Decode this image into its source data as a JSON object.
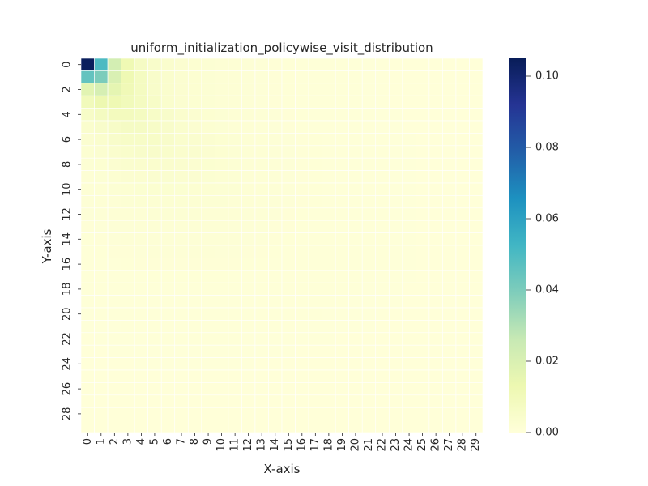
{
  "chart_data": {
    "type": "heatmap",
    "title": "uniform_initialization_policywise_visit_distribution",
    "xlabel": "X-axis",
    "ylabel": "Y-axis",
    "n_cols": 30,
    "n_rows": 30,
    "x_tick_labels": [
      "0",
      "1",
      "2",
      "3",
      "4",
      "5",
      "6",
      "7",
      "8",
      "9",
      "10",
      "11",
      "12",
      "13",
      "14",
      "15",
      "16",
      "17",
      "18",
      "19",
      "20",
      "21",
      "22",
      "23",
      "24",
      "25",
      "26",
      "27",
      "28",
      "29"
    ],
    "y_tick_labels": [
      "0",
      "2",
      "4",
      "6",
      "8",
      "10",
      "12",
      "14",
      "16",
      "18",
      "20",
      "22",
      "24",
      "26",
      "28"
    ],
    "colorbar": {
      "min": 0.0,
      "max": 0.105,
      "ticks": [
        0.0,
        0.02,
        0.04,
        0.06,
        0.08,
        0.1
      ],
      "tick_labels": [
        "0.00",
        "0.02",
        "0.04",
        "0.06",
        "0.08",
        "0.10"
      ],
      "colormap": "YlGnBu",
      "colors": [
        "#ffffd9",
        "#edf8b1",
        "#c7e9b4",
        "#7fcdbb",
        "#41b6c4",
        "#1d91c0",
        "#225ea8",
        "#253494",
        "#081d58"
      ]
    },
    "values": [
      [
        0.104,
        0.05,
        0.022,
        0.012,
        0.007,
        0.005,
        0.004,
        0.003,
        0.0025,
        0.002,
        0.0018,
        0.0015,
        0.0013,
        0.0011,
        0.001,
        0.0009,
        0.0008,
        0.0007,
        0.0006,
        0.0005,
        0.0005,
        0.0004,
        0.0004,
        0.0003,
        0.0003,
        0.0003,
        0.0002,
        0.0002,
        0.0002,
        0.0002
      ],
      [
        0.045,
        0.04,
        0.02,
        0.012,
        0.008,
        0.005,
        0.004,
        0.003,
        0.0025,
        0.002,
        0.0018,
        0.0015,
        0.0013,
        0.0011,
        0.001,
        0.0009,
        0.0008,
        0.0007,
        0.0006,
        0.0005,
        0.0005,
        0.0004,
        0.0004,
        0.0003,
        0.0003,
        0.0003,
        0.0002,
        0.0002,
        0.0002,
        0.0002
      ],
      [
        0.017,
        0.021,
        0.016,
        0.011,
        0.008,
        0.005,
        0.004,
        0.003,
        0.0025,
        0.002,
        0.0018,
        0.0015,
        0.0013,
        0.0011,
        0.001,
        0.0009,
        0.0008,
        0.0007,
        0.0006,
        0.0005,
        0.0005,
        0.0004,
        0.0004,
        0.0003,
        0.0003,
        0.0003,
        0.0002,
        0.0002,
        0.0002,
        0.0002
      ],
      [
        0.01,
        0.013,
        0.012,
        0.01,
        0.008,
        0.006,
        0.004,
        0.003,
        0.0025,
        0.002,
        0.0018,
        0.0015,
        0.0013,
        0.0011,
        0.001,
        0.0009,
        0.0008,
        0.0007,
        0.0006,
        0.0005,
        0.0005,
        0.0004,
        0.0004,
        0.0003,
        0.0003,
        0.0003,
        0.0002,
        0.0002,
        0.0002,
        0.0002
      ],
      [
        0.006,
        0.008,
        0.009,
        0.009,
        0.008,
        0.006,
        0.005,
        0.004,
        0.003,
        0.0025,
        0.002,
        0.0018,
        0.0015,
        0.0013,
        0.0011,
        0.001,
        0.0009,
        0.0008,
        0.0007,
        0.0006,
        0.0005,
        0.0005,
        0.0004,
        0.0004,
        0.0003,
        0.0003,
        0.0003,
        0.0002,
        0.0002,
        0.0002
      ],
      [
        0.004,
        0.005,
        0.006,
        0.007,
        0.007,
        0.006,
        0.005,
        0.004,
        0.003,
        0.0025,
        0.002,
        0.0018,
        0.0015,
        0.0013,
        0.0011,
        0.001,
        0.0009,
        0.0008,
        0.0007,
        0.0006,
        0.0005,
        0.0005,
        0.0004,
        0.0004,
        0.0003,
        0.0003,
        0.0003,
        0.0002,
        0.0002,
        0.0002
      ],
      [
        0.003,
        0.004,
        0.005,
        0.006,
        0.006,
        0.006,
        0.005,
        0.004,
        0.0035,
        0.003,
        0.0025,
        0.002,
        0.0018,
        0.0015,
        0.0013,
        0.0011,
        0.001,
        0.0009,
        0.0008,
        0.0007,
        0.0006,
        0.0005,
        0.0005,
        0.0004,
        0.0004,
        0.0003,
        0.0003,
        0.0003,
        0.0002,
        0.0002
      ],
      [
        0.0025,
        0.003,
        0.004,
        0.0045,
        0.005,
        0.005,
        0.0045,
        0.004,
        0.0035,
        0.003,
        0.0025,
        0.002,
        0.0018,
        0.0015,
        0.0013,
        0.0011,
        0.001,
        0.0009,
        0.0008,
        0.0007,
        0.0006,
        0.0005,
        0.0005,
        0.0004,
        0.0004,
        0.0003,
        0.0003,
        0.0003,
        0.0002,
        0.0002
      ],
      [
        0.002,
        0.0025,
        0.003,
        0.0035,
        0.004,
        0.004,
        0.004,
        0.0035,
        0.003,
        0.0028,
        0.0025,
        0.002,
        0.0018,
        0.0015,
        0.0013,
        0.0011,
        0.001,
        0.0009,
        0.0008,
        0.0007,
        0.0006,
        0.0005,
        0.0005,
        0.0004,
        0.0004,
        0.0003,
        0.0003,
        0.0003,
        0.0002,
        0.0002
      ],
      [
        0.0018,
        0.002,
        0.0025,
        0.003,
        0.0032,
        0.0034,
        0.0034,
        0.0032,
        0.003,
        0.0027,
        0.0024,
        0.002,
        0.0018,
        0.0015,
        0.0013,
        0.0011,
        0.001,
        0.0009,
        0.0008,
        0.0007,
        0.0006,
        0.0005,
        0.0005,
        0.0004,
        0.0004,
        0.0003,
        0.0003,
        0.0003,
        0.0002,
        0.0002
      ],
      [
        0.0015,
        0.0018,
        0.002,
        0.0024,
        0.0027,
        0.0028,
        0.0028,
        0.0027,
        0.0025,
        0.0023,
        0.0021,
        0.0019,
        0.0017,
        0.0015,
        0.0013,
        0.0011,
        0.001,
        0.0009,
        0.0008,
        0.0007,
        0.0006,
        0.0005,
        0.0005,
        0.0004,
        0.0004,
        0.0003,
        0.0003,
        0.0003,
        0.0002,
        0.0002
      ],
      [
        0.0013,
        0.0015,
        0.0017,
        0.002,
        0.0022,
        0.0023,
        0.0024,
        0.0023,
        0.0022,
        0.002,
        0.0019,
        0.0017,
        0.0015,
        0.0014,
        0.0012,
        0.0011,
        0.001,
        0.0009,
        0.0008,
        0.0007,
        0.0006,
        0.0005,
        0.0005,
        0.0004,
        0.0004,
        0.0003,
        0.0003,
        0.0003,
        0.0002,
        0.0002
      ],
      [
        0.0011,
        0.0013,
        0.0015,
        0.0017,
        0.0018,
        0.0019,
        0.002,
        0.002,
        0.0019,
        0.0018,
        0.0017,
        0.0015,
        0.0014,
        0.0013,
        0.0011,
        0.001,
        0.0009,
        0.0008,
        0.0008,
        0.0007,
        0.0006,
        0.0005,
        0.0005,
        0.0004,
        0.0004,
        0.0003,
        0.0003,
        0.0003,
        0.0002,
        0.0002
      ],
      [
        0.001,
        0.0011,
        0.0013,
        0.0014,
        0.0015,
        0.0016,
        0.0017,
        0.0017,
        0.0016,
        0.0016,
        0.0015,
        0.0014,
        0.0013,
        0.0012,
        0.001,
        0.001,
        0.0009,
        0.0008,
        0.0007,
        0.0007,
        0.0006,
        0.0005,
        0.0005,
        0.0004,
        0.0004,
        0.0003,
        0.0003,
        0.0003,
        0.0002,
        0.0002
      ],
      [
        0.0009,
        0.001,
        0.0011,
        0.0012,
        0.0013,
        0.0014,
        0.0014,
        0.0014,
        0.0014,
        0.0014,
        0.0013,
        0.0012,
        0.0011,
        0.0011,
        0.001,
        0.0009,
        0.0008,
        0.0008,
        0.0007,
        0.0006,
        0.0006,
        0.0005,
        0.0005,
        0.0004,
        0.0004,
        0.0003,
        0.0003,
        0.0003,
        0.0002,
        0.0002
      ],
      [
        0.0008,
        0.0009,
        0.001,
        0.001,
        0.0011,
        0.0012,
        0.0012,
        0.0012,
        0.0012,
        0.0012,
        0.0011,
        0.0011,
        0.001,
        0.001,
        0.0009,
        0.0008,
        0.0008,
        0.0007,
        0.0007,
        0.0006,
        0.0006,
        0.0005,
        0.0005,
        0.0004,
        0.0004,
        0.0003,
        0.0003,
        0.0003,
        0.0002,
        0.0002
      ],
      [
        0.0007,
        0.0008,
        0.0008,
        0.0009,
        0.001,
        0.001,
        0.001,
        0.001,
        0.001,
        0.001,
        0.001,
        0.001,
        0.0009,
        0.0009,
        0.0008,
        0.0008,
        0.0007,
        0.0007,
        0.0006,
        0.0006,
        0.0005,
        0.0005,
        0.0005,
        0.0004,
        0.0004,
        0.0003,
        0.0003,
        0.0003,
        0.0002,
        0.0002
      ],
      [
        0.0006,
        0.0007,
        0.0007,
        0.0008,
        0.0008,
        0.0009,
        0.0009,
        0.0009,
        0.0009,
        0.0009,
        0.0009,
        0.0008,
        0.0008,
        0.0008,
        0.0007,
        0.0007,
        0.0007,
        0.0006,
        0.0006,
        0.0005,
        0.0005,
        0.0005,
        0.0004,
        0.0004,
        0.0004,
        0.0003,
        0.0003,
        0.0003,
        0.0002,
        0.0002
      ],
      [
        0.0005,
        0.0006,
        0.0006,
        0.0007,
        0.0007,
        0.0008,
        0.0008,
        0.0008,
        0.0008,
        0.0008,
        0.0008,
        0.0007,
        0.0007,
        0.0007,
        0.0007,
        0.0006,
        0.0006,
        0.0006,
        0.0005,
        0.0005,
        0.0005,
        0.0004,
        0.0004,
        0.0004,
        0.0003,
        0.0003,
        0.0003,
        0.0003,
        0.0002,
        0.0002
      ],
      [
        0.0005,
        0.0005,
        0.0006,
        0.0006,
        0.0006,
        0.0007,
        0.0007,
        0.0007,
        0.0007,
        0.0007,
        0.0007,
        0.0007,
        0.0006,
        0.0006,
        0.0006,
        0.0006,
        0.0005,
        0.0005,
        0.0005,
        0.0005,
        0.0004,
        0.0004,
        0.0004,
        0.0004,
        0.0003,
        0.0003,
        0.0003,
        0.0003,
        0.0002,
        0.0002
      ],
      [
        0.0004,
        0.0005,
        0.0005,
        0.0005,
        0.0006,
        0.0006,
        0.0006,
        0.0006,
        0.0006,
        0.0006,
        0.0006,
        0.0006,
        0.0006,
        0.0005,
        0.0005,
        0.0005,
        0.0005,
        0.0005,
        0.0004,
        0.0004,
        0.0004,
        0.0004,
        0.0004,
        0.0003,
        0.0003,
        0.0003,
        0.0003,
        0.0003,
        0.0002,
        0.0002
      ],
      [
        0.0004,
        0.0004,
        0.0004,
        0.0005,
        0.0005,
        0.0005,
        0.0005,
        0.0005,
        0.0005,
        0.0005,
        0.0005,
        0.0005,
        0.0005,
        0.0005,
        0.0005,
        0.0005,
        0.0004,
        0.0004,
        0.0004,
        0.0004,
        0.0004,
        0.0004,
        0.0003,
        0.0003,
        0.0003,
        0.0003,
        0.0003,
        0.0002,
        0.0002,
        0.0002
      ],
      [
        0.0003,
        0.0004,
        0.0004,
        0.0004,
        0.0004,
        0.0005,
        0.0005,
        0.0005,
        0.0005,
        0.0005,
        0.0005,
        0.0005,
        0.0004,
        0.0004,
        0.0004,
        0.0004,
        0.0004,
        0.0004,
        0.0004,
        0.0003,
        0.0003,
        0.0003,
        0.0003,
        0.0003,
        0.0003,
        0.0003,
        0.0002,
        0.0002,
        0.0002,
        0.0002
      ],
      [
        0.0003,
        0.0003,
        0.0004,
        0.0004,
        0.0004,
        0.0004,
        0.0004,
        0.0004,
        0.0004,
        0.0004,
        0.0004,
        0.0004,
        0.0004,
        0.0004,
        0.0004,
        0.0004,
        0.0003,
        0.0003,
        0.0003,
        0.0003,
        0.0003,
        0.0003,
        0.0003,
        0.0003,
        0.0003,
        0.0002,
        0.0002,
        0.0002,
        0.0002,
        0.0002
      ],
      [
        0.0003,
        0.0003,
        0.0003,
        0.0003,
        0.0004,
        0.0004,
        0.0004,
        0.0004,
        0.0004,
        0.0004,
        0.0004,
        0.0004,
        0.0004,
        0.0003,
        0.0003,
        0.0003,
        0.0003,
        0.0003,
        0.0003,
        0.0003,
        0.0003,
        0.0003,
        0.0003,
        0.0002,
        0.0002,
        0.0002,
        0.0002,
        0.0002,
        0.0002,
        0.0002
      ],
      [
        0.0003,
        0.0003,
        0.0003,
        0.0003,
        0.0003,
        0.0003,
        0.0003,
        0.0003,
        0.0003,
        0.0003,
        0.0003,
        0.0003,
        0.0003,
        0.0003,
        0.0003,
        0.0003,
        0.0003,
        0.0003,
        0.0003,
        0.0003,
        0.0003,
        0.0002,
        0.0002,
        0.0002,
        0.0002,
        0.0002,
        0.0002,
        0.0002,
        0.0002,
        0.0002
      ],
      [
        0.0002,
        0.0003,
        0.0003,
        0.0003,
        0.0003,
        0.0003,
        0.0003,
        0.0003,
        0.0003,
        0.0003,
        0.0003,
        0.0003,
        0.0003,
        0.0003,
        0.0003,
        0.0003,
        0.0003,
        0.0003,
        0.0002,
        0.0002,
        0.0002,
        0.0002,
        0.0002,
        0.0002,
        0.0002,
        0.0002,
        0.0002,
        0.0002,
        0.0002,
        0.0002
      ],
      [
        0.0002,
        0.0002,
        0.0002,
        0.0003,
        0.0003,
        0.0003,
        0.0003,
        0.0003,
        0.0003,
        0.0003,
        0.0003,
        0.0003,
        0.0003,
        0.0003,
        0.0002,
        0.0002,
        0.0002,
        0.0002,
        0.0002,
        0.0002,
        0.0002,
        0.0002,
        0.0002,
        0.0002,
        0.0002,
        0.0002,
        0.0002,
        0.0002,
        0.0002,
        0.0002
      ],
      [
        0.0002,
        0.0002,
        0.0002,
        0.0002,
        0.0002,
        0.0002,
        0.0002,
        0.0002,
        0.0002,
        0.0002,
        0.0002,
        0.0002,
        0.0002,
        0.0002,
        0.0002,
        0.0002,
        0.0002,
        0.0002,
        0.0002,
        0.0002,
        0.0002,
        0.0002,
        0.0002,
        0.0002,
        0.0002,
        0.0002,
        0.0002,
        0.0002,
        0.0002,
        0.0002
      ],
      [
        0.0002,
        0.0002,
        0.0002,
        0.0002,
        0.0002,
        0.0002,
        0.0002,
        0.0002,
        0.0002,
        0.0002,
        0.0002,
        0.0002,
        0.0002,
        0.0002,
        0.0002,
        0.0002,
        0.0002,
        0.0002,
        0.0002,
        0.0002,
        0.0002,
        0.0002,
        0.0002,
        0.0002,
        0.0002,
        0.0002,
        0.0002,
        0.0002,
        0.0002,
        0.0002
      ]
    ]
  }
}
